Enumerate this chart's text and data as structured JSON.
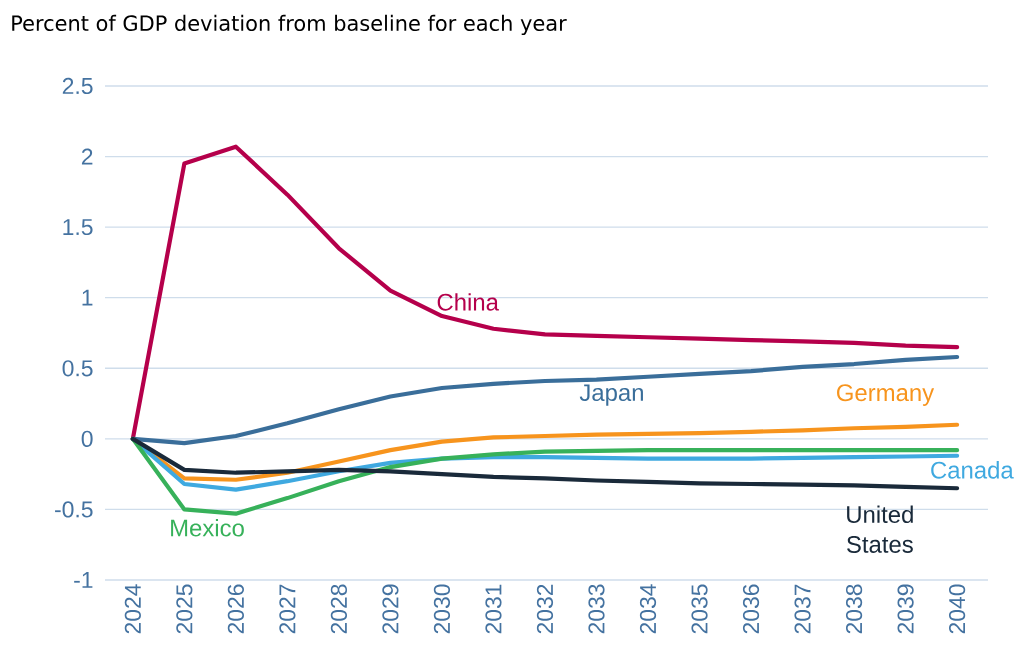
{
  "chart_data": {
    "type": "line",
    "ylabel": "Percent of GDP deviation from baseline for each year",
    "categories": [
      "2024",
      "2025",
      "2026",
      "2027",
      "2028",
      "2029",
      "2030",
      "2031",
      "2032",
      "2033",
      "2034",
      "2035",
      "2036",
      "2037",
      "2038",
      "2039",
      "2040"
    ],
    "series": [
      {
        "name": "China",
        "color": "#b5004b",
        "values": [
          0,
          1.95,
          2.07,
          1.73,
          1.35,
          1.05,
          0.87,
          0.78,
          0.74,
          0.73,
          0.72,
          0.71,
          0.7,
          0.69,
          0.68,
          0.66,
          0.65
        ]
      },
      {
        "name": "Japan",
        "color": "#3a6e9a",
        "values": [
          0,
          -0.03,
          0.02,
          0.11,
          0.21,
          0.3,
          0.36,
          0.39,
          0.41,
          0.42,
          0.44,
          0.46,
          0.48,
          0.51,
          0.53,
          0.56,
          0.58
        ]
      },
      {
        "name": "Germany",
        "color": "#f7941d",
        "values": [
          0,
          -0.28,
          -0.29,
          -0.24,
          -0.16,
          -0.08,
          -0.02,
          0.01,
          0.02,
          0.03,
          0.035,
          0.04,
          0.05,
          0.06,
          0.075,
          0.085,
          0.1
        ]
      },
      {
        "name": "Canada",
        "color": "#3fa9e0",
        "values": [
          0,
          -0.32,
          -0.36,
          -0.3,
          -0.23,
          -0.17,
          -0.14,
          -0.13,
          -0.13,
          -0.135,
          -0.14,
          -0.14,
          -0.14,
          -0.135,
          -0.13,
          -0.125,
          -0.12
        ]
      },
      {
        "name": "Mexico",
        "color": "#37b15a",
        "values": [
          0,
          -0.5,
          -0.53,
          -0.42,
          -0.3,
          -0.2,
          -0.14,
          -0.11,
          -0.09,
          -0.085,
          -0.08,
          -0.08,
          -0.08,
          -0.08,
          -0.08,
          -0.08,
          -0.08
        ]
      },
      {
        "name": "United States",
        "color": "#1a2a3a",
        "values": [
          0,
          -0.22,
          -0.24,
          -0.23,
          -0.22,
          -0.23,
          -0.25,
          -0.27,
          -0.28,
          -0.295,
          -0.305,
          -0.315,
          -0.32,
          -0.325,
          -0.33,
          -0.34,
          -0.35
        ]
      }
    ],
    "ylim": [
      -1,
      2.5
    ],
    "yticks": [
      -1,
      -0.5,
      0,
      0.5,
      1,
      1.5,
      2,
      2.5
    ],
    "grid": "y",
    "legend": false
  }
}
